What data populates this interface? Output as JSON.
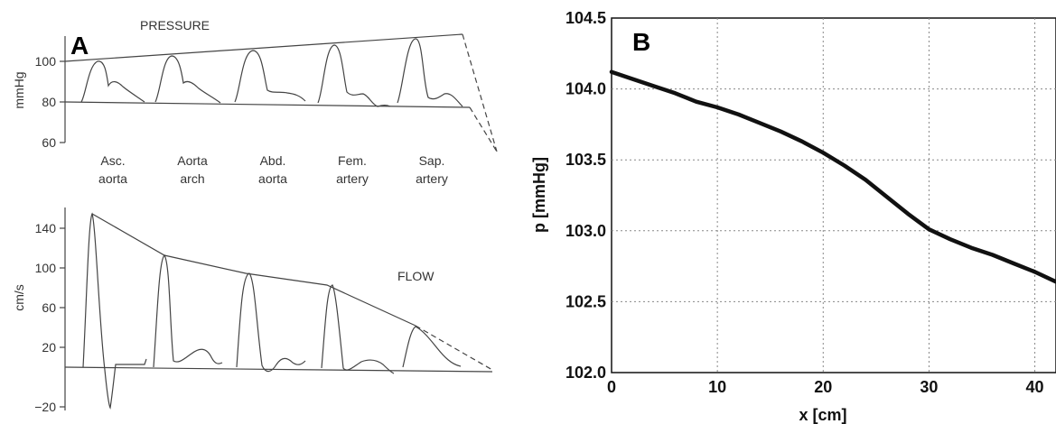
{
  "panel_a": {
    "letter": "A",
    "pressure": {
      "label": "PRESSURE",
      "ylabel": "mmHg",
      "yticks": [
        "100",
        "80",
        "60"
      ],
      "sites": [
        {
          "line1": "Asc.",
          "line2": "aorta"
        },
        {
          "line1": "Aorta",
          "line2": "arch"
        },
        {
          "line1": "Abd.",
          "line2": "aorta"
        },
        {
          "line1": "Fem.",
          "line2": "artery"
        },
        {
          "line1": "Sap.",
          "line2": "artery"
        }
      ]
    },
    "flow": {
      "label": "FLOW",
      "ylabel": "cm/s",
      "yticks": [
        "140",
        "100",
        "60",
        "20",
        "−20"
      ]
    }
  },
  "chart_data": [
    {
      "type": "line",
      "panel": "B",
      "title": "",
      "xlabel": "x [cm]",
      "ylabel": "p [mmHg]",
      "xlim": [
        0,
        42
      ],
      "ylim": [
        102.0,
        104.5
      ],
      "xticks": [
        0,
        10,
        20,
        30,
        40
      ],
      "yticks": [
        102.0,
        102.5,
        103.0,
        103.5,
        104.0,
        104.5
      ],
      "ytick_labels": [
        "102.0",
        "102.5",
        "103.0",
        "103.5",
        "104.0",
        "104.5"
      ],
      "grid": true,
      "series": [
        {
          "x": [
            0,
            2,
            4,
            6,
            8,
            10,
            12,
            14,
            16,
            18,
            20,
            22,
            24,
            26,
            28,
            30,
            32,
            34,
            36,
            38,
            40,
            42
          ],
          "y": [
            104.12,
            104.07,
            104.02,
            103.97,
            103.91,
            103.87,
            103.82,
            103.76,
            103.7,
            103.63,
            103.55,
            103.46,
            103.36,
            103.24,
            103.12,
            103.01,
            102.94,
            102.88,
            102.83,
            102.77,
            102.71,
            102.64
          ]
        }
      ]
    }
  ],
  "colors": {
    "curveB": "#111111",
    "gridB": "#888888",
    "axisA": "#444444"
  }
}
